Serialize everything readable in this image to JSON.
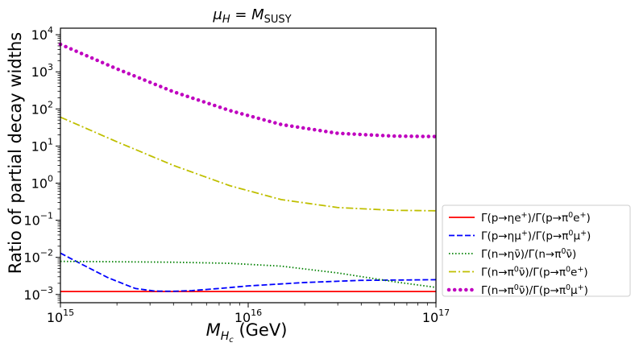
{
  "chart_data": {
    "type": "line",
    "title": "μ_H = M_SUSY",
    "title_parts": {
      "base": "μ",
      "base_sub": "H",
      "eq": " = ",
      "rhs": "M",
      "rhs_sub": "SUSY"
    },
    "xlabel": "M_{H_c} (GeV)",
    "xlabel_parts": {
      "base": "M",
      "sub": "H",
      "subsub": "c",
      "unit": " (GeV)"
    },
    "ylabel": "Ratio of partial decay widths",
    "xscale": "log",
    "yscale": "log",
    "xlim": [
      1000000000000000.0,
      1e+17
    ],
    "ylim": [
      0.0006,
      15000
    ],
    "x_ticks": [
      {
        "value": 1000000000000000.0,
        "base": "10",
        "exp": "15"
      },
      {
        "value": 1e+16,
        "base": "10",
        "exp": "16"
      },
      {
        "value": 1e+17,
        "base": "10",
        "exp": "17"
      }
    ],
    "y_ticks": [
      {
        "value": 0.001,
        "base": "10",
        "exp": "−3"
      },
      {
        "value": 0.01,
        "base": "10",
        "exp": "−2"
      },
      {
        "value": 0.1,
        "base": "10",
        "exp": "−1"
      },
      {
        "value": 1,
        "base": "10",
        "exp": "0"
      },
      {
        "value": 10,
        "base": "10",
        "exp": "1"
      },
      {
        "value": 100,
        "base": "10",
        "exp": "2"
      },
      {
        "value": 1000,
        "base": "10",
        "exp": "3"
      },
      {
        "value": 10000,
        "base": "10",
        "exp": "4"
      }
    ],
    "legend_position": "lower-right, outside plot",
    "series": [
      {
        "name": "Γ(p→ηe⁺)/Γ(p→π⁰e⁺)",
        "color": "#ff0000",
        "style": "solid",
        "x": [
          1000000000000000.0,
          1e+17
        ],
        "y": [
          0.0012,
          0.0012
        ]
      },
      {
        "name": "Γ(p→ημ⁺)/Γ(p→π⁰μ⁺)",
        "color": "#0000ff",
        "style": "dashed",
        "x": [
          1000000000000000.0,
          1300000000000000.0,
          1800000000000000.0,
          2500000000000000.0,
          3200000000000000.0,
          4000000000000000.0,
          5000000000000000.0,
          7000000000000000.0,
          1e+16,
          2e+16,
          4e+16,
          1e+17
        ],
        "y": [
          0.013,
          0.0065,
          0.0028,
          0.00145,
          0.00123,
          0.00122,
          0.00127,
          0.00145,
          0.0017,
          0.0021,
          0.0024,
          0.0025
        ]
      },
      {
        "name": "Γ(n→ην̄)/Γ(n→π⁰ν̄)",
        "color": "#008000",
        "style": "dotted",
        "x": [
          1000000000000000.0,
          2000000000000000.0,
          4000000000000000.0,
          8000000000000000.0,
          1.5e+16,
          3e+16,
          6e+16,
          1e+17
        ],
        "y": [
          0.0078,
          0.0076,
          0.0074,
          0.0069,
          0.0058,
          0.0038,
          0.0022,
          0.00155
        ]
      },
      {
        "name": "Γ(n→π⁰ν̄)/Γ(p→π⁰e⁺)",
        "color": "#bfbf00",
        "style": "dashdot",
        "x": [
          1000000000000000.0,
          2000000000000000.0,
          4000000000000000.0,
          8000000000000000.0,
          1.5e+16,
          3e+16,
          6e+16,
          1e+17
        ],
        "y": [
          60,
          13,
          3.0,
          0.85,
          0.36,
          0.22,
          0.185,
          0.18
        ]
      },
      {
        "name": "Γ(n→π⁰ν̄)/Γ(p→π⁰μ⁺)",
        "color": "#bf00bf",
        "style": "thick-dotted",
        "x": [
          1000000000000000.0,
          2000000000000000.0,
          4000000000000000.0,
          8000000000000000.0,
          1.5e+16,
          3e+16,
          6e+16,
          1e+17
        ],
        "y": [
          5500,
          1200,
          290,
          90,
          38,
          22,
          18.5,
          18
        ]
      }
    ],
    "legend_labels": [
      {
        "pre": "Γ(p→ηe",
        "sup1": "+",
        "mid": ")/Γ(p→π",
        "sup2": "0",
        "post": "e",
        "sup3": "+",
        "end": ")"
      },
      {
        "pre": "Γ(p→ημ",
        "sup1": "+",
        "mid": ")/Γ(p→π",
        "sup2": "0",
        "post": "μ",
        "sup3": "+",
        "end": ")"
      },
      {
        "pre": "Γ(n→ην̄)/Γ(n→π",
        "sup1": "",
        "mid": "",
        "sup2": "0",
        "post": "ν̄)",
        "sup3": "",
        "end": ""
      },
      {
        "pre": "Γ(n→π",
        "sup1": "0",
        "mid": "ν̄)/Γ(p→π",
        "sup2": "0",
        "post": "e",
        "sup3": "+",
        "end": ")"
      },
      {
        "pre": "Γ(n→π",
        "sup1": "0",
        "mid": "ν̄)/Γ(p→π",
        "sup2": "0",
        "post": "μ",
        "sup3": "+",
        "end": ")"
      }
    ]
  }
}
